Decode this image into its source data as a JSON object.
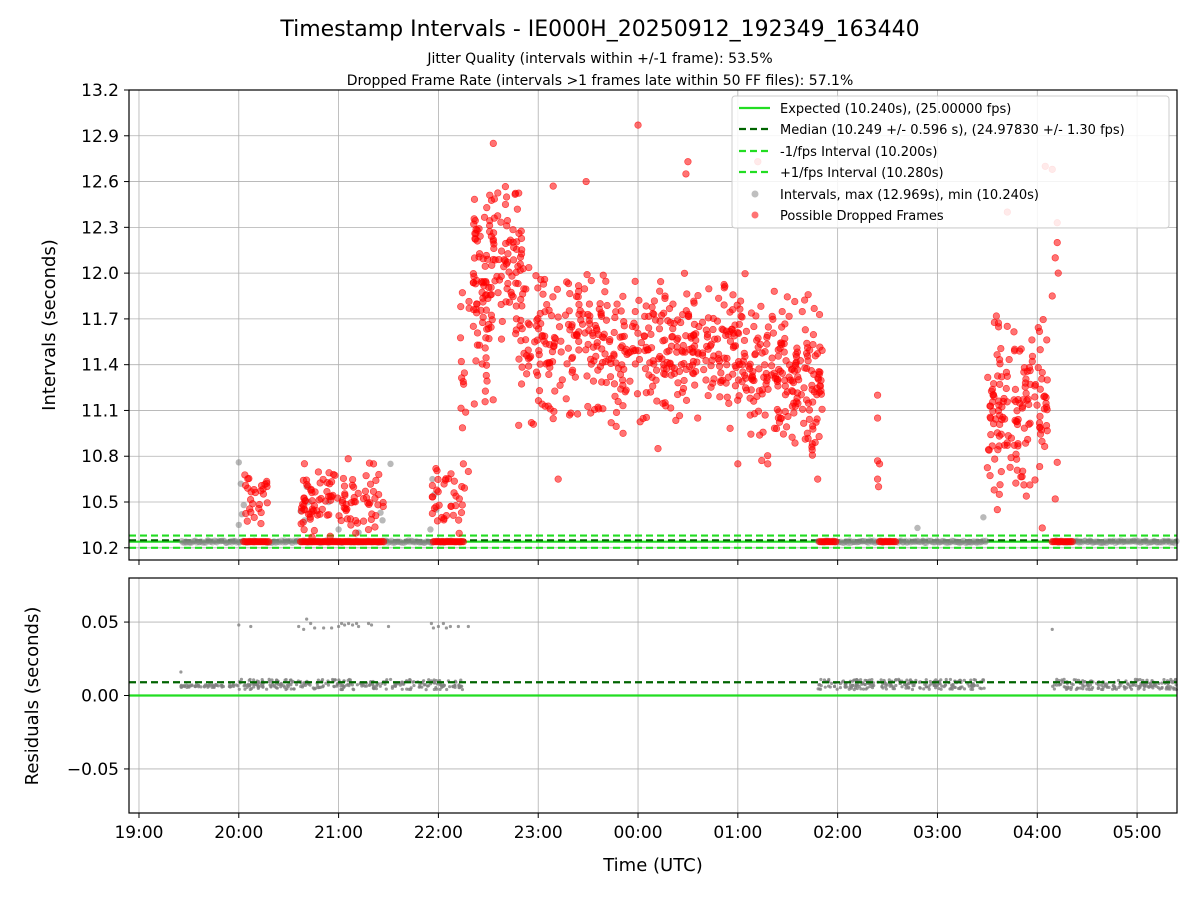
{
  "chart_data": [
    {
      "type": "scatter",
      "title": "Timestamp Intervals - IE000H_20250912_192349_163440",
      "subtitle_1": "Jitter Quality (intervals within +/-1 frame): 53.5%",
      "subtitle_2": "Dropped Frame Rate (intervals >1 frames late within 50 FF files): 57.1%",
      "ylabel": "Intervals (seconds)",
      "ylim": [
        10.12,
        13.2
      ],
      "yticks": [
        10.2,
        10.5,
        10.8,
        11.1,
        11.4,
        11.7,
        12.0,
        12.3,
        12.6,
        12.9,
        13.2
      ],
      "ytick_labels": [
        "10.2",
        "10.5",
        "10.8",
        "11.1",
        "11.4",
        "11.7",
        "12.0",
        "12.3",
        "12.6",
        "12.9",
        "13.2"
      ],
      "x_unit": "hours since 19:00 UTC",
      "xlim": [
        -0.1,
        10.4
      ],
      "grid": true,
      "legend_position": "top-right",
      "legend": [
        {
          "label": "Expected (10.240s), (25.00000 fps)",
          "style": "solid",
          "color": "#22dd22"
        },
        {
          "label": "Median (10.249 +/- 0.596 s), (24.97830 +/- 1.30 fps)",
          "style": "dashed",
          "color": "#006400"
        },
        {
          "label": "-1/fps Interval (10.200s)",
          "style": "dashed",
          "color": "#22dd22"
        },
        {
          "label": "+1/fps Interval (10.280s)",
          "style": "dashed",
          "color": "#22dd22"
        },
        {
          "label": "Intervals, max (12.969s), min (10.240s)",
          "style": "marker",
          "color": "#808080"
        },
        {
          "label": "Possible Dropped Frames",
          "style": "marker",
          "color": "#ff0000"
        }
      ],
      "lines": {
        "expected": 10.24,
        "median": 10.249,
        "minus_1fps": 10.2,
        "plus_1fps": 10.28
      },
      "baseline_segments": [
        [
          0.42,
          3.25
        ],
        [
          6.8,
          8.5
        ],
        [
          9.15,
          10.4
        ]
      ],
      "gray_points": [
        [
          1.0,
          10.76
        ],
        [
          1.02,
          10.62
        ],
        [
          1.05,
          10.48
        ],
        [
          1.0,
          10.35
        ],
        [
          1.03,
          10.42
        ],
        [
          1.68,
          10.6
        ],
        [
          1.7,
          10.5
        ],
        [
          1.62,
          10.44
        ],
        [
          1.66,
          10.38
        ],
        [
          1.9,
          10.5
        ],
        [
          2.0,
          10.32
        ],
        [
          2.2,
          10.3
        ],
        [
          2.42,
          10.43
        ],
        [
          2.44,
          10.38
        ],
        [
          2.52,
          10.75
        ],
        [
          2.94,
          10.65
        ],
        [
          2.96,
          10.55
        ],
        [
          2.92,
          10.32
        ],
        [
          2.98,
          10.45
        ],
        [
          7.8,
          10.33
        ],
        [
          8.46,
          10.4
        ]
      ],
      "red_clusters": [
        {
          "x_range": [
            1.05,
            1.3
          ],
          "y_range": [
            10.24,
            10.76
          ],
          "count": 28,
          "seed": 11
        },
        {
          "x_range": [
            1.62,
            2.45
          ],
          "y_range": [
            10.24,
            10.8
          ],
          "count": 110,
          "seed": 12
        },
        {
          "x_range": [
            2.93,
            3.28
          ],
          "y_range": [
            10.24,
            10.74
          ],
          "count": 36,
          "seed": 13
        },
        {
          "x_range": [
            3.22,
            3.55
          ],
          "y_range": [
            10.9,
            12.05
          ],
          "count": 40,
          "seed": 14
        },
        {
          "x_range": [
            3.35,
            3.85
          ],
          "y_range": [
            11.5,
            12.7
          ],
          "count": 130,
          "seed": 15
        },
        {
          "x_range": [
            3.8,
            5.0
          ],
          "y_range": [
            10.95,
            12.1
          ],
          "count": 230,
          "seed": 16
        },
        {
          "x_range": [
            5.0,
            6.1
          ],
          "y_range": [
            10.95,
            12.05
          ],
          "count": 230,
          "seed": 17
        },
        {
          "x_range": [
            6.1,
            6.85
          ],
          "y_range": [
            10.75,
            11.9
          ],
          "count": 190,
          "seed": 18
        },
        {
          "x_range": [
            8.5,
            9.1
          ],
          "y_range": [
            10.45,
            11.8
          ],
          "count": 150,
          "seed": 19
        }
      ],
      "red_points": [
        [
          5.0,
          12.97
        ],
        [
          3.55,
          12.85
        ],
        [
          4.48,
          12.6
        ],
        [
          4.15,
          12.57
        ],
        [
          5.5,
          12.73
        ],
        [
          5.48,
          12.65
        ],
        [
          6.2,
          12.73
        ],
        [
          8.7,
          12.4
        ],
        [
          9.08,
          12.7
        ],
        [
          9.15,
          12.68
        ],
        [
          9.2,
          12.33
        ],
        [
          9.2,
          12.2
        ],
        [
          9.18,
          12.1
        ],
        [
          9.21,
          12.0
        ],
        [
          9.15,
          11.85
        ],
        [
          6.0,
          10.75
        ],
        [
          6.3,
          10.75
        ],
        [
          6.8,
          10.65
        ],
        [
          5.2,
          10.85
        ],
        [
          4.2,
          10.65
        ],
        [
          4.85,
          10.95
        ],
        [
          7.4,
          11.2
        ],
        [
          7.4,
          11.05
        ],
        [
          7.4,
          10.77
        ],
        [
          7.42,
          10.75
        ],
        [
          7.4,
          10.65
        ],
        [
          7.41,
          10.6
        ],
        [
          9.2,
          10.76
        ],
        [
          9.05,
          10.33
        ],
        [
          9.18,
          10.52
        ],
        [
          2.35,
          10.75
        ],
        [
          3.25,
          10.75
        ],
        [
          3.3,
          10.7
        ],
        [
          8.6,
          10.45
        ],
        [
          8.62,
          10.55
        ],
        [
          9.1,
          11.3
        ]
      ],
      "red_baseline_runs": [
        [
          1.05,
          1.3
        ],
        [
          1.62,
          2.45
        ],
        [
          2.95,
          3.25
        ],
        [
          6.82,
          6.98
        ],
        [
          7.42,
          7.58
        ],
        [
          9.15,
          9.35
        ]
      ]
    },
    {
      "type": "scatter",
      "xlabel": "Time (UTC)",
      "ylabel": "Residuals (seconds)",
      "ylim": [
        -0.08,
        0.08
      ],
      "yticks": [
        -0.05,
        0.0,
        0.05
      ],
      "ytick_labels": [
        "−0.05",
        "0.00",
        "0.05"
      ],
      "xlim": [
        -0.1,
        10.4
      ],
      "xticks": [
        0,
        1,
        2,
        3,
        4,
        5,
        6,
        7,
        8,
        9,
        10
      ],
      "xtick_labels": [
        "19:00",
        "20:00",
        "21:00",
        "22:00",
        "23:00",
        "00:00",
        "01:00",
        "02:00",
        "03:00",
        "04:00",
        "05:00"
      ],
      "expected_line": 0.0,
      "median_line": 0.009,
      "residual_bands": [
        {
          "x_range": [
            0.42,
            1.0
          ],
          "y_range": [
            0.0055,
            0.0075
          ],
          "count": 60,
          "seed": 31
        },
        {
          "x_range": [
            1.0,
            3.25
          ],
          "y_range": [
            0.004,
            0.011
          ],
          "count": 260,
          "seed": 32
        },
        {
          "x_range": [
            6.8,
            8.5
          ],
          "y_range": [
            0.004,
            0.011
          ],
          "count": 220,
          "seed": 33
        },
        {
          "x_range": [
            9.15,
            10.4
          ],
          "y_range": [
            0.004,
            0.011
          ],
          "count": 170,
          "seed": 34
        }
      ],
      "residual_outliers": [
        [
          0.42,
          0.016
        ],
        [
          1.0,
          0.048
        ],
        [
          1.12,
          0.047
        ],
        [
          1.6,
          0.047
        ],
        [
          1.65,
          0.045
        ],
        [
          1.68,
          0.052
        ],
        [
          1.72,
          0.049
        ],
        [
          1.76,
          0.046
        ],
        [
          1.85,
          0.046
        ],
        [
          1.93,
          0.046
        ],
        [
          2.0,
          0.047
        ],
        [
          2.03,
          0.049
        ],
        [
          2.06,
          0.048
        ],
        [
          2.1,
          0.049
        ],
        [
          2.14,
          0.048
        ],
        [
          2.18,
          0.049
        ],
        [
          2.2,
          0.047
        ],
        [
          2.3,
          0.049
        ],
        [
          2.33,
          0.048
        ],
        [
          2.5,
          0.047
        ],
        [
          2.93,
          0.049
        ],
        [
          2.95,
          0.046
        ],
        [
          3.0,
          0.047
        ],
        [
          3.05,
          0.049
        ],
        [
          3.08,
          0.046
        ],
        [
          3.12,
          0.047
        ],
        [
          3.2,
          0.047
        ],
        [
          3.3,
          0.047
        ],
        [
          9.15,
          0.045
        ]
      ]
    }
  ]
}
